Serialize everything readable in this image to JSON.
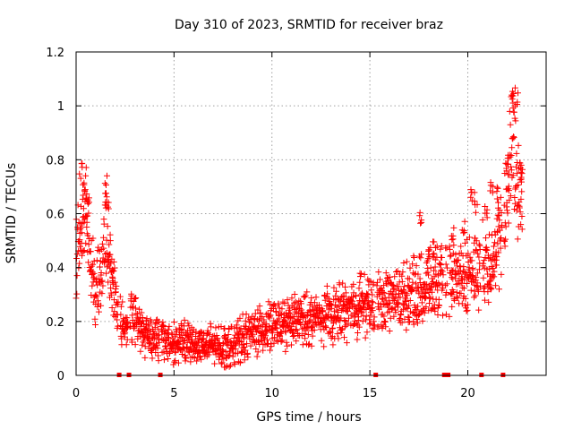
{
  "chart_data": {
    "type": "scatter",
    "title": "Day 310 of 2023, SRMTID for receiver braz",
    "xlabel": "GPS time / hours",
    "ylabel": "SRMTID / TECUs",
    "xlim": [
      0,
      24
    ],
    "ylim": [
      0,
      1.2
    ],
    "xticks": [
      0,
      5,
      10,
      15,
      20
    ],
    "xtick_labels": [
      "0",
      "5",
      "10",
      "15",
      "20"
    ],
    "yticks": [
      0,
      0.2,
      0.4,
      0.6,
      0.8,
      1.0,
      1.2
    ],
    "ytick_labels": [
      "0",
      "0.2",
      "0.4",
      "0.6",
      "0.8",
      "1",
      "1.2"
    ],
    "grid": true,
    "marker": "plus",
    "color": "#ff0000",
    "series": [
      {
        "name": "SRMTID",
        "envelope": [
          [
            0.0,
            0.4
          ],
          [
            0.25,
            0.55
          ],
          [
            0.5,
            0.62
          ],
          [
            0.75,
            0.42
          ],
          [
            1.0,
            0.3
          ],
          [
            1.3,
            0.38
          ],
          [
            1.5,
            0.55
          ],
          [
            1.8,
            0.35
          ],
          [
            2.2,
            0.2
          ],
          [
            2.6,
            0.18
          ],
          [
            3.0,
            0.22
          ],
          [
            3.5,
            0.16
          ],
          [
            4.0,
            0.14
          ],
          [
            5.0,
            0.12
          ],
          [
            6.0,
            0.12
          ],
          [
            7.0,
            0.11
          ],
          [
            8.0,
            0.11
          ],
          [
            9.0,
            0.16
          ],
          [
            10.0,
            0.18
          ],
          [
            11.0,
            0.2
          ],
          [
            12.0,
            0.21
          ],
          [
            13.0,
            0.22
          ],
          [
            14.0,
            0.25
          ],
          [
            15.0,
            0.26
          ],
          [
            16.0,
            0.28
          ],
          [
            17.0,
            0.3
          ],
          [
            18.0,
            0.33
          ],
          [
            19.0,
            0.35
          ],
          [
            20.0,
            0.38
          ],
          [
            21.0,
            0.42
          ],
          [
            21.5,
            0.45
          ],
          [
            22.0,
            0.65
          ],
          [
            22.3,
            0.9
          ],
          [
            22.5,
            0.72
          ],
          [
            22.8,
            0.68
          ]
        ],
        "spikes": [
          [
            0.25,
            0.79
          ],
          [
            0.4,
            0.75
          ],
          [
            0.6,
            0.68
          ],
          [
            1.5,
            0.75
          ],
          [
            1.6,
            0.68
          ],
          [
            1.8,
            0.45
          ],
          [
            14.5,
            0.4
          ],
          [
            17.6,
            0.62
          ],
          [
            18.0,
            0.47
          ],
          [
            18.3,
            0.5
          ],
          [
            19.2,
            0.55
          ],
          [
            19.8,
            0.58
          ],
          [
            20.2,
            0.7
          ],
          [
            20.4,
            0.68
          ],
          [
            20.9,
            0.66
          ],
          [
            21.2,
            0.72
          ],
          [
            21.5,
            0.7
          ],
          [
            22.0,
            0.82
          ],
          [
            22.3,
            1.06
          ],
          [
            22.5,
            1.07
          ],
          [
            22.7,
            0.8
          ]
        ]
      }
    ],
    "gap_markers_x": [
      2.2,
      2.7,
      4.3,
      15.3,
      18.8,
      19.0,
      20.7,
      21.8
    ]
  }
}
